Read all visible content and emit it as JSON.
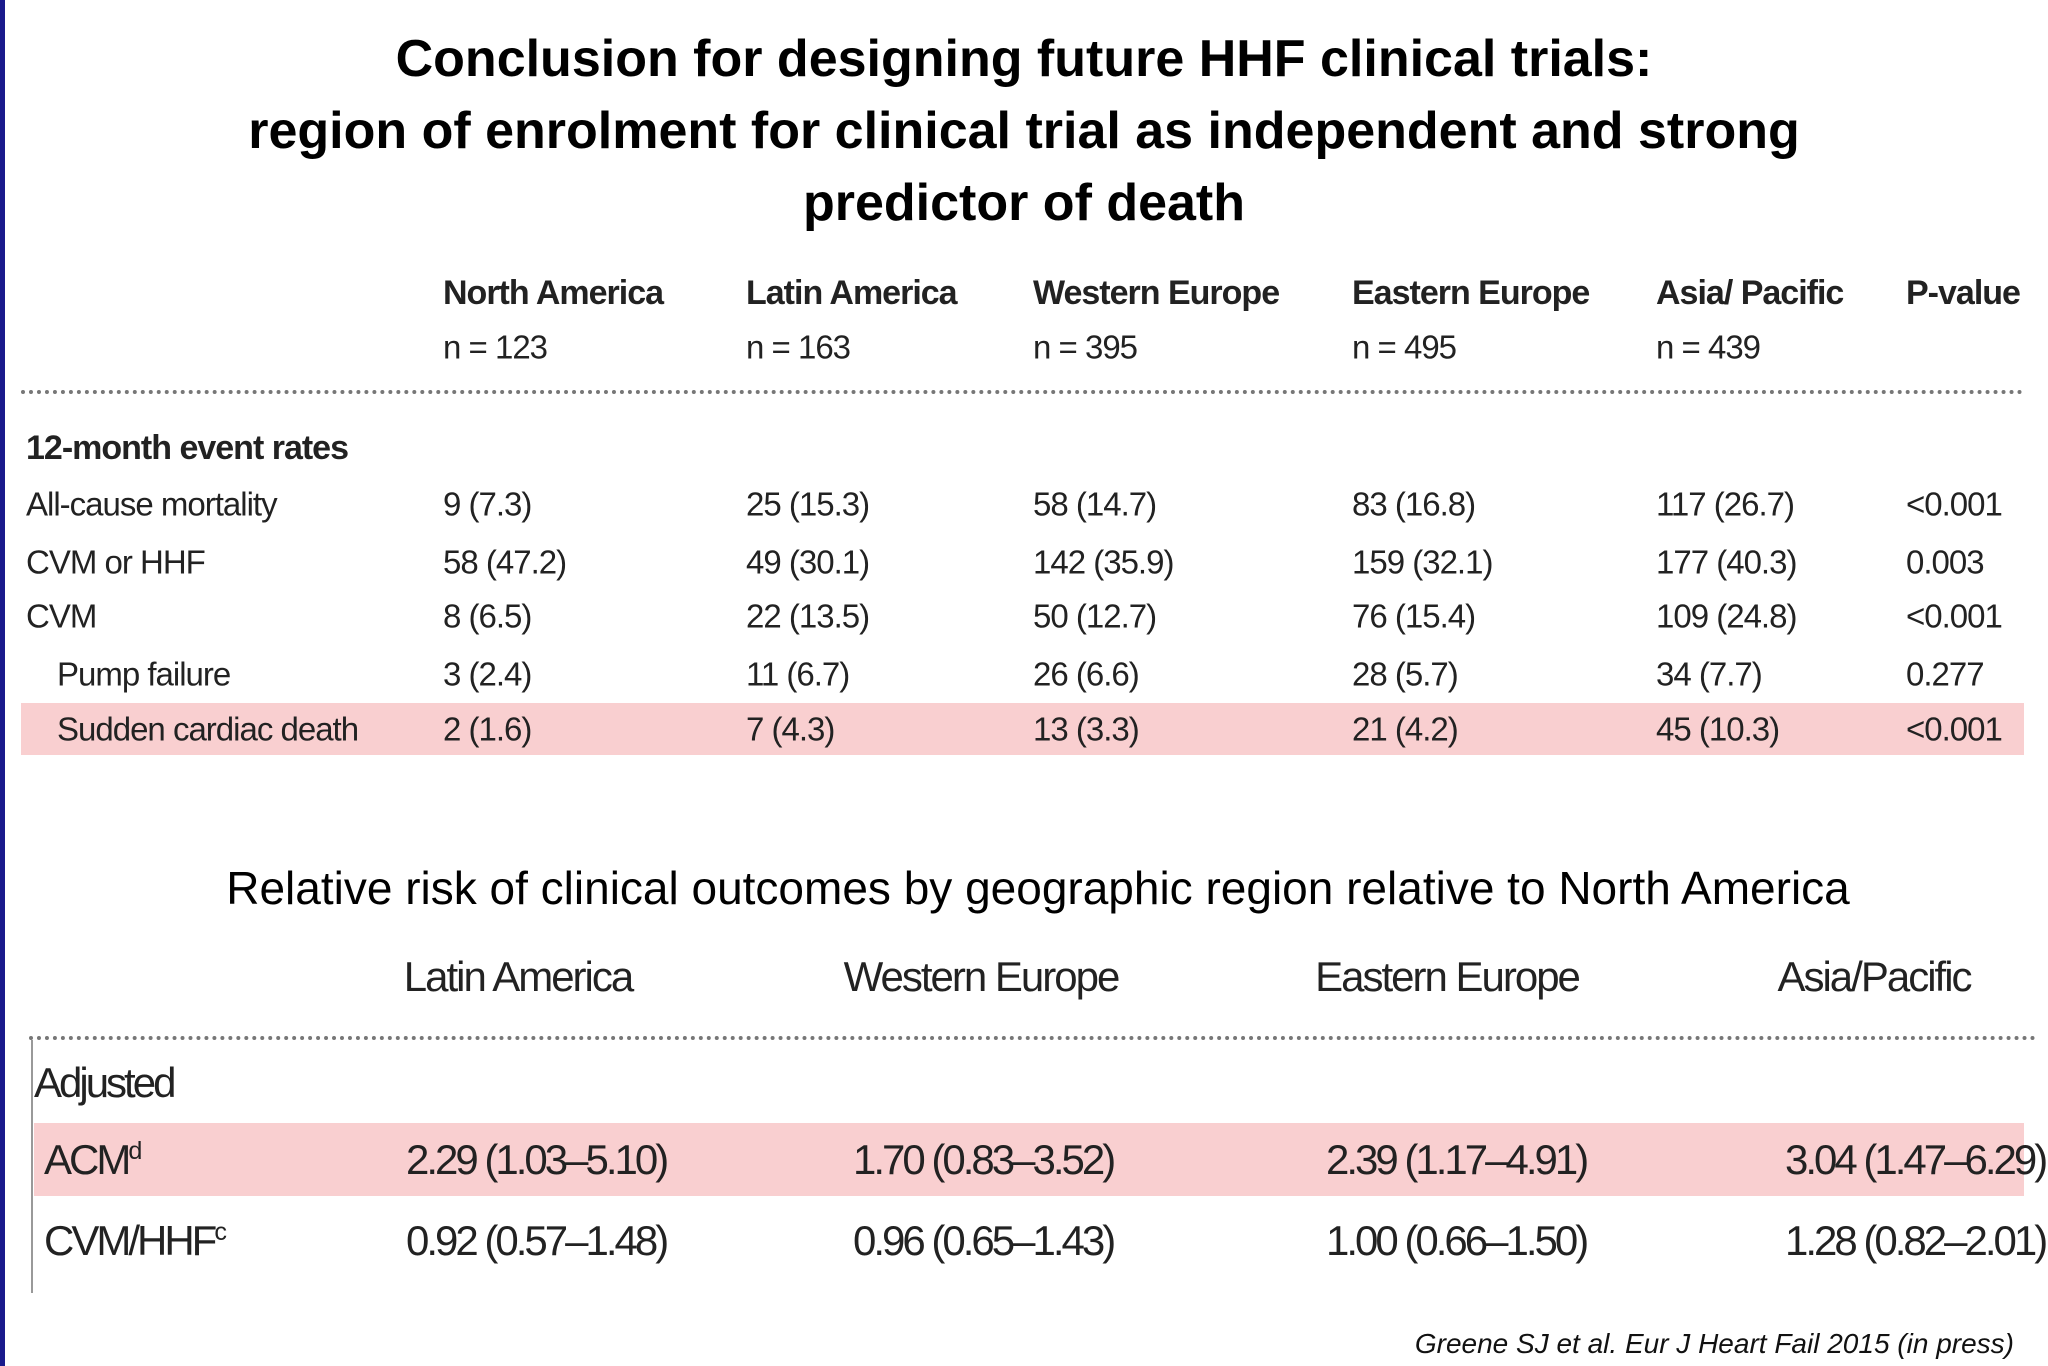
{
  "title_lines": [
    "Conclusion for designing future HHF clinical trials:",
    "region of enrolment for clinical trial as independent  and strong",
    "predictor of death"
  ],
  "table1": {
    "columns": [
      {
        "name": "North America",
        "n": "n = 123"
      },
      {
        "name": "Latin America",
        "n": "n = 163"
      },
      {
        "name": "Western Europe",
        "n": "n = 395"
      },
      {
        "name": "Eastern Europe",
        "n": "n = 495"
      },
      {
        "name": "Asia/ Pacific",
        "n": "n = 439"
      },
      {
        "name": "P-value"
      }
    ],
    "section": "12-month event rates",
    "rows": [
      {
        "label": "All-cause mortality",
        "cells": [
          "9 (7.3)",
          "25 (15.3)",
          "58 (14.7)",
          "83 (16.8)",
          "117 (26.7)",
          "<0.001"
        ]
      },
      {
        "label": "CVM or HHF",
        "cells": [
          "58 (47.2)",
          "49 (30.1)",
          "142 (35.9)",
          "159 (32.1)",
          "177 (40.3)",
          "0.003"
        ]
      },
      {
        "label": "CVM",
        "cells": [
          "8 (6.5)",
          "22 (13.5)",
          "50 (12.7)",
          "76 (15.4)",
          "109 (24.8)",
          "<0.001"
        ]
      },
      {
        "label": "Pump failure",
        "cells": [
          "3 (2.4)",
          "11 (6.7)",
          "26 (6.6)",
          "28 (5.7)",
          "34 (7.7)",
          "0.277"
        ]
      },
      {
        "label": "Sudden cardiac death",
        "cells": [
          "2 (1.6)",
          "7 (4.3)",
          "13 (3.3)",
          "21 (4.2)",
          "45 (10.3)",
          "<0.001"
        ]
      }
    ]
  },
  "subtitle": "Relative risk of clinical outcomes by geographic region relative to North America",
  "table2": {
    "columns": [
      "Latin America",
      "Western Europe",
      "Eastern Europe",
      "Asia/Pacific"
    ],
    "section": "Adjusted",
    "rows": [
      {
        "label": "ACM",
        "note": "d",
        "cells": [
          "2.29 (1.03–5.10)",
          "1.70 (0.83–3.52)",
          "2.39 (1.17–4.91)",
          "3.04 (1.47–6.29)"
        ]
      },
      {
        "label": "CVM/HHF",
        "note": "c",
        "cells": [
          "0.92 (0.57–1.48)",
          "0.96 (0.65–1.43)",
          "1.00 (0.66–1.50)",
          "1.28 (0.82–2.01)"
        ]
      }
    ]
  },
  "citation": "Greene SJ et al. Eur J Heart Fail 2015 (in press)"
}
